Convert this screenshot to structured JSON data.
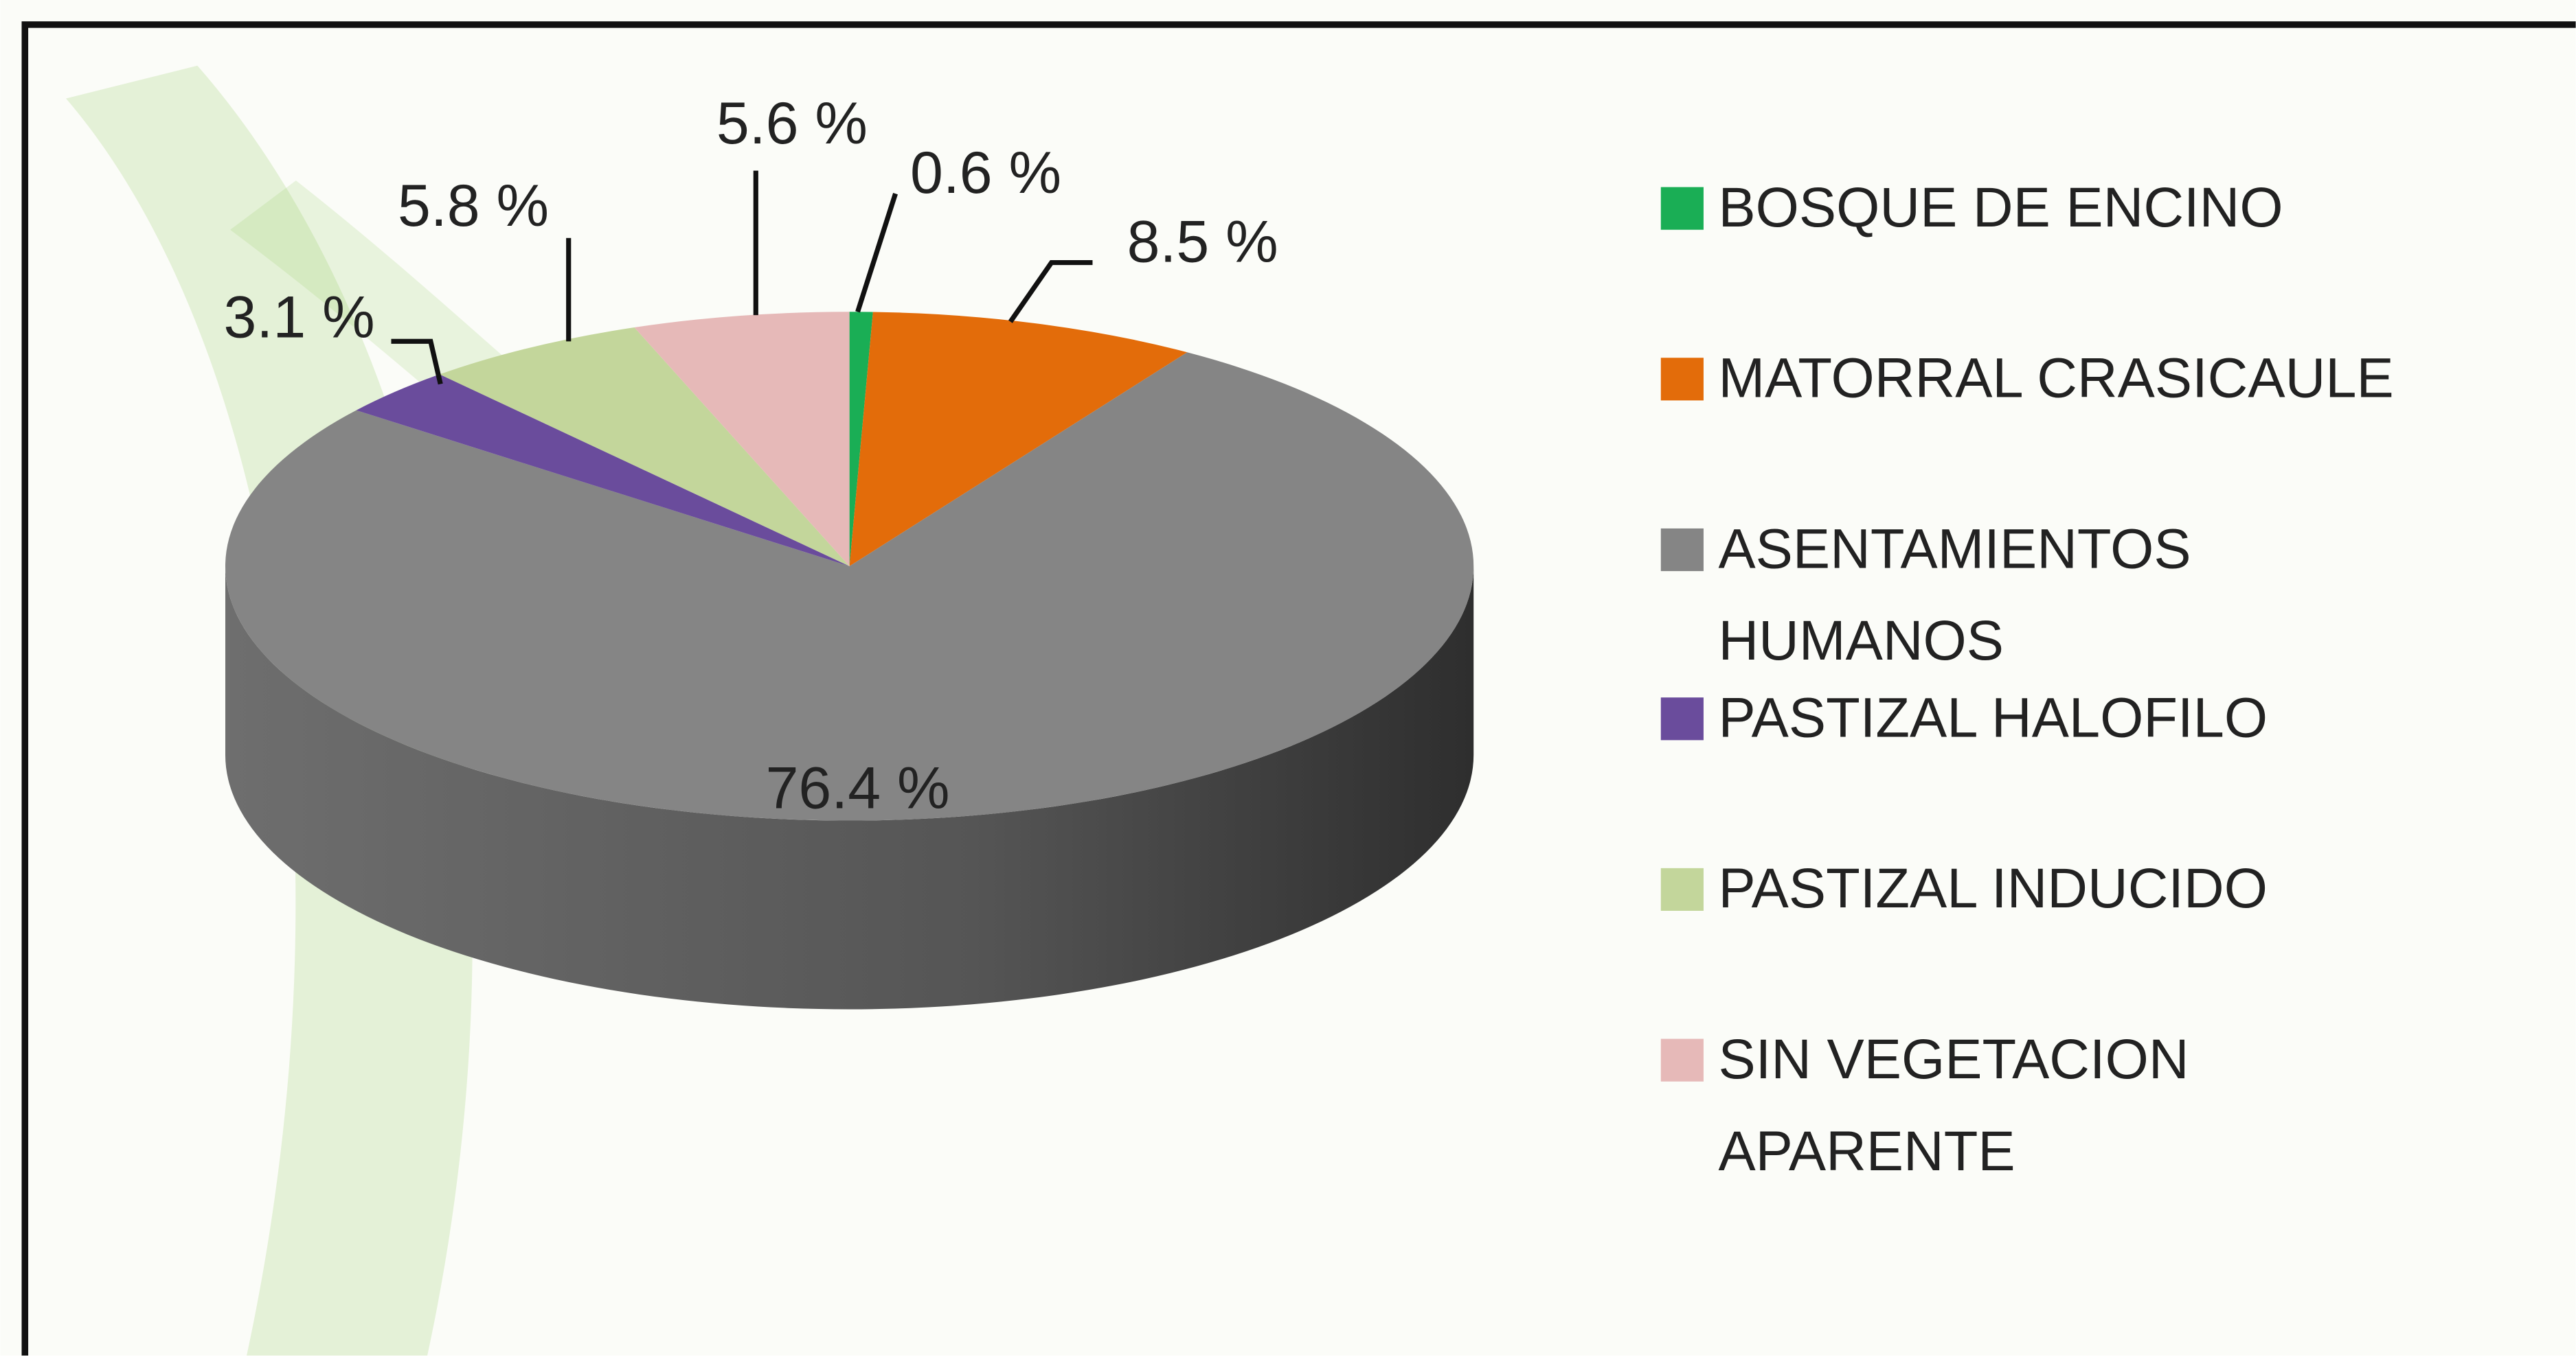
{
  "chart_data": {
    "type": "pie",
    "categories": [
      "BOSQUE DE ENCINO",
      "MATORRAL CRASICAULE",
      "ASENTAMIENTOS HUMANOS",
      "PASTIZAL HALOFILO",
      "PASTIZAL INDUCIDO",
      "SIN VEGETACION APARENTE"
    ],
    "values": [
      0.6,
      8.5,
      76.4,
      3.1,
      5.8,
      5.6
    ],
    "value_labels": [
      "0.6 %",
      "8.5 %",
      "76.4 %",
      "3.1 %",
      "5.8 %",
      "5.6 %"
    ],
    "colors": [
      "#1aae55",
      "#e36c0a",
      "#858585",
      "#6a4c9c",
      "#c3d69b",
      "#e6b9b8"
    ],
    "legend": "right"
  }
}
